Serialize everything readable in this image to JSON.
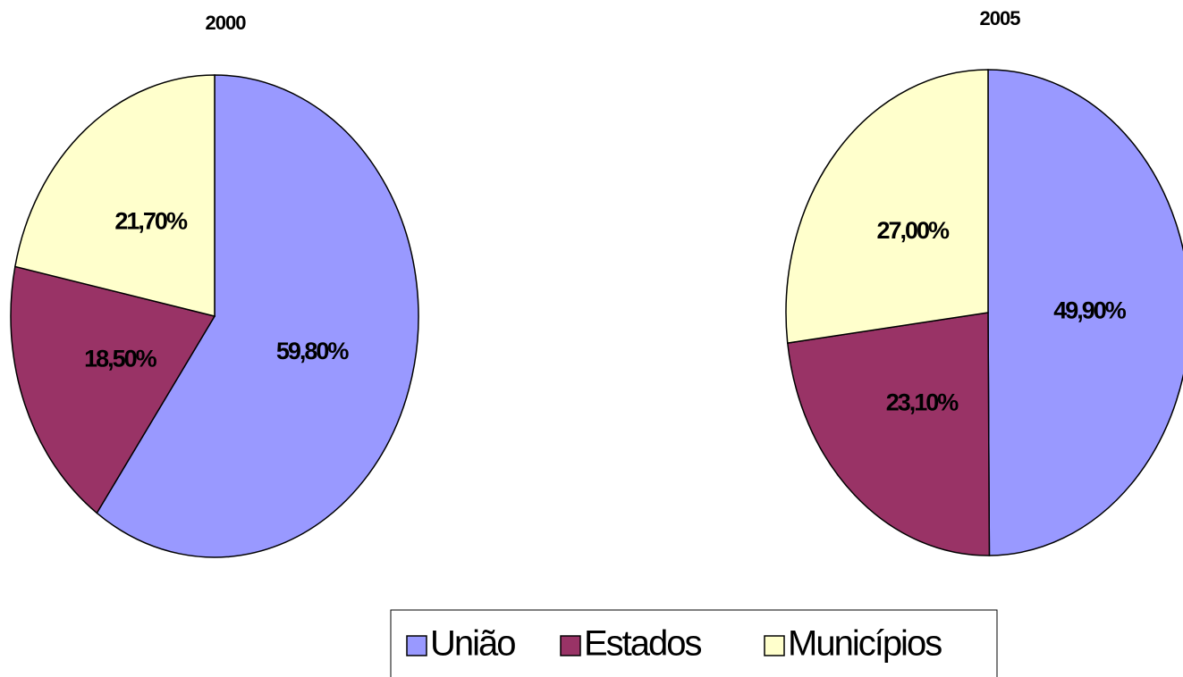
{
  "chart_data": [
    {
      "type": "pie",
      "title": "2000",
      "categories": [
        "União",
        "Estados",
        "Municípios"
      ],
      "values": [
        59.8,
        18.5,
        21.7
      ],
      "value_labels": [
        "59,80%",
        "18,50%",
        "21,70%"
      ],
      "colors": [
        "#9999ff",
        "#993366",
        "#ffffcc"
      ]
    },
    {
      "type": "pie",
      "title": "2005",
      "categories": [
        "União",
        "Estados",
        "Municípios"
      ],
      "values": [
        49.9,
        23.1,
        27.0
      ],
      "value_labels": [
        "49,90%",
        "23,10%",
        "27,00%"
      ],
      "colors": [
        "#9999ff",
        "#993366",
        "#ffffcc"
      ]
    }
  ]
}
